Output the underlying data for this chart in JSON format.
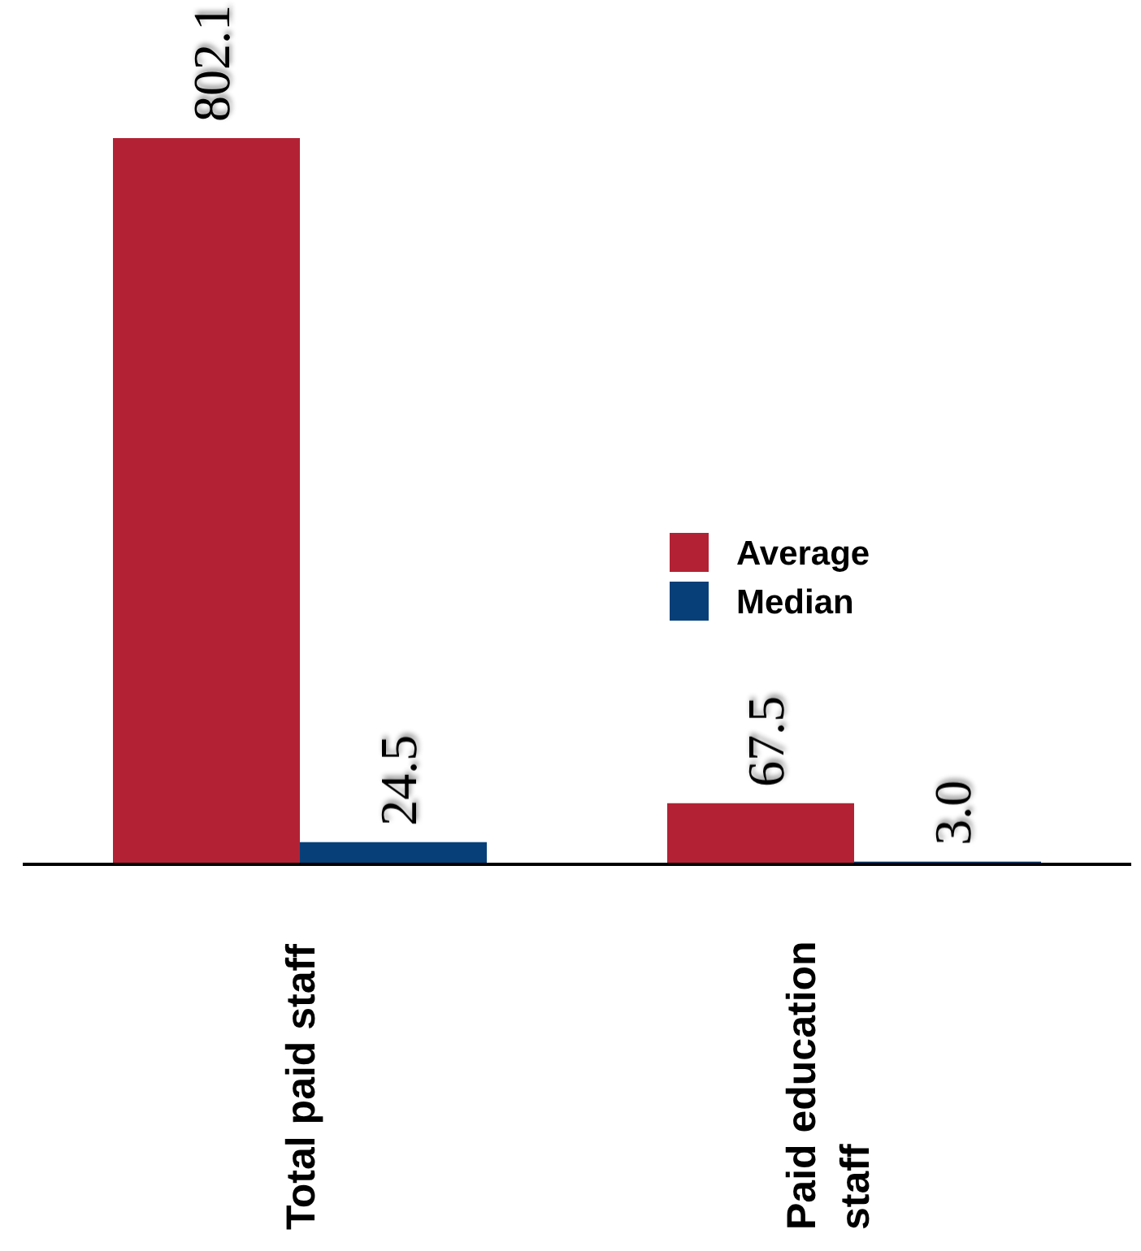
{
  "chart_data": {
    "type": "bar",
    "categories": [
      "Total paid staff",
      "Paid education staff"
    ],
    "series": [
      {
        "name": "Average",
        "color": "#b22234",
        "values": [
          802.1,
          67.5
        ],
        "value_labels": [
          "802.1",
          "67.5"
        ]
      },
      {
        "name": "Median",
        "color": "#073f78",
        "values": [
          24.5,
          3.0
        ],
        "value_labels": [
          "24.5",
          "3.0"
        ]
      }
    ],
    "legend": "right",
    "tick_labels": "x"
  }
}
